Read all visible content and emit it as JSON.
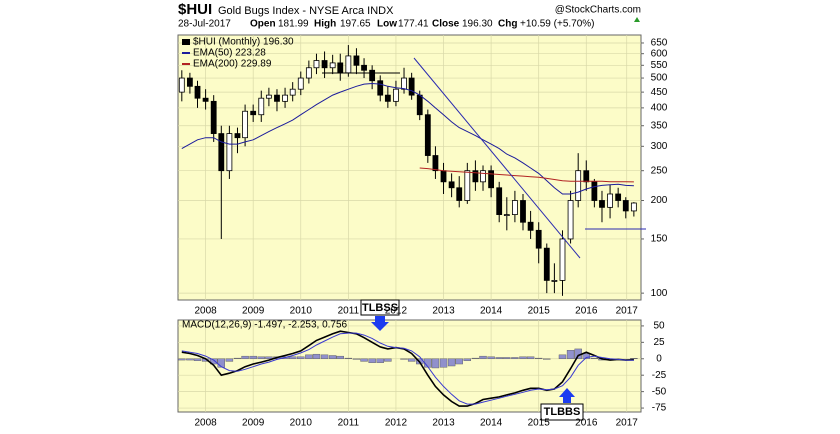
{
  "chart_data": [
    {
      "type": "ohlc",
      "title": "$HUI",
      "subtitle": "Gold Bugs Index - NYSE Arca INDX",
      "source": "@StockCharts.com",
      "info": [
        "28-Jul-2017",
        "Open",
        "181.99",
        "High",
        "197.65",
        "Low",
        "177.41",
        "Close",
        "196.30",
        "Chg",
        "+10.59 (+5.70%)"
      ],
      "log_scale": true,
      "grid": true,
      "xlim": [
        2007.92,
        2017.65
      ],
      "ylim": [
        95,
        690
      ],
      "xticks": [
        {
          "value": 2008.5,
          "label": "2008"
        },
        {
          "value": 2009.5,
          "label": "2009"
        },
        {
          "value": 2010.5,
          "label": "2010"
        },
        {
          "value": 2011.5,
          "label": "2011"
        },
        {
          "value": 2012.5,
          "label": "2012"
        },
        {
          "value": 2013.5,
          "label": "2013"
        },
        {
          "value": 2014.5,
          "label": "2014"
        },
        {
          "value": 2015.5,
          "label": "2015"
        },
        {
          "value": 2016.5,
          "label": "2016"
        },
        {
          "value": 2017.35,
          "label": "2017"
        }
      ],
      "yticks": [
        100,
        150,
        200,
        250,
        300,
        350,
        400,
        450,
        500,
        550,
        600,
        650
      ],
      "x": [
        2008,
        2008.17,
        2008.33,
        2008.5,
        2008.67,
        2008.83,
        2009,
        2009.17,
        2009.33,
        2009.5,
        2009.67,
        2009.83,
        2010,
        2010.17,
        2010.33,
        2010.5,
        2010.67,
        2010.83,
        2011,
        2011.17,
        2011.33,
        2011.5,
        2011.67,
        2011.83,
        2012,
        2012.17,
        2012.33,
        2012.5,
        2012.67,
        2012.83,
        2013,
        2013.17,
        2013.33,
        2013.5,
        2013.67,
        2013.83,
        2014,
        2014.17,
        2014.33,
        2014.5,
        2014.67,
        2014.83,
        2015,
        2015.17,
        2015.33,
        2015.5,
        2015.67,
        2015.83,
        2016,
        2016.17,
        2016.33,
        2016.5,
        2016.67,
        2016.83,
        2017,
        2017.17,
        2017.33,
        2017.5
      ],
      "series": [
        {
          "name": "$HUI (Monthly) 196.30",
          "color": "#000000",
          "open": [
            450,
            500,
            470,
            430,
            420,
            330,
            250,
            330,
            320,
            390,
            380,
            430,
            440,
            420,
            440,
            460,
            500,
            540,
            570,
            540,
            560,
            520,
            590,
            550,
            530,
            490,
            440,
            420,
            460,
            500,
            440,
            380,
            280,
            250,
            230,
            220,
            200,
            250,
            230,
            250,
            220,
            180,
            180,
            200,
            170,
            160,
            140,
            110,
            110,
            150,
            200,
            250,
            230,
            200,
            190,
            210,
            200,
            185
          ],
          "high": [
            530,
            520,
            490,
            460,
            440,
            350,
            350,
            345,
            410,
            410,
            455,
            465,
            460,
            465,
            485,
            525,
            570,
            600,
            610,
            595,
            600,
            640,
            625,
            580,
            550,
            510,
            470,
            490,
            540,
            520,
            455,
            395,
            300,
            265,
            245,
            240,
            265,
            270,
            260,
            260,
            230,
            205,
            215,
            210,
            185,
            170,
            145,
            125,
            160,
            215,
            285,
            270,
            235,
            215,
            225,
            220,
            205,
            197.65
          ],
          "low": [
            420,
            445,
            400,
            395,
            310,
            150,
            235,
            285,
            300,
            360,
            360,
            405,
            390,
            400,
            420,
            440,
            480,
            515,
            500,
            515,
            490,
            505,
            515,
            500,
            460,
            420,
            400,
            405,
            445,
            425,
            365,
            265,
            235,
            210,
            205,
            190,
            195,
            215,
            215,
            205,
            170,
            160,
            170,
            160,
            150,
            125,
            100,
            100,
            98,
            145,
            190,
            215,
            190,
            170,
            175,
            190,
            175,
            177.41
          ],
          "close": [
            500,
            470,
            430,
            420,
            330,
            250,
            330,
            320,
            390,
            380,
            430,
            440,
            420,
            440,
            460,
            500,
            540,
            570,
            540,
            560,
            520,
            590,
            550,
            530,
            490,
            440,
            420,
            460,
            500,
            440,
            380,
            280,
            250,
            230,
            220,
            200,
            250,
            230,
            250,
            220,
            180,
            180,
            200,
            170,
            160,
            140,
            110,
            110,
            150,
            200,
            250,
            230,
            200,
            190,
            210,
            200,
            185,
            196.3
          ]
        },
        {
          "name": "EMA(50) 223.28",
          "color": "#1c1c9c",
          "values": [
            295,
            305,
            315,
            320,
            320,
            310,
            305,
            305,
            310,
            315,
            325,
            335,
            345,
            355,
            365,
            380,
            395,
            410,
            425,
            440,
            450,
            460,
            470,
            478,
            480,
            478,
            470,
            465,
            462,
            455,
            440,
            420,
            400,
            380,
            360,
            345,
            335,
            325,
            315,
            305,
            295,
            283,
            275,
            265,
            255,
            245,
            232,
            220,
            210,
            210,
            213,
            218,
            222,
            224,
            225,
            226,
            224,
            223.28
          ]
        },
        {
          "name": "EMA(200) 229.89",
          "color": "#b22222",
          "values": [
            null,
            null,
            null,
            null,
            null,
            null,
            null,
            null,
            null,
            null,
            null,
            null,
            null,
            null,
            null,
            null,
            null,
            null,
            null,
            null,
            null,
            null,
            null,
            null,
            null,
            null,
            null,
            null,
            null,
            null,
            255,
            254,
            252,
            250,
            249,
            248,
            247,
            246,
            245,
            244,
            243,
            242,
            241,
            240,
            239,
            238,
            236,
            234,
            232,
            231,
            231,
            231,
            231,
            231,
            230,
            230,
            230,
            229.89
          ]
        }
      ]
    },
    {
      "type": "macd",
      "title": "MACD(12,26,9) -1.497, -2.253, 0.756",
      "grid": true,
      "annotations": [
        "TLBSS",
        "TLBBS"
      ],
      "xlim": [
        2007.92,
        2017.65
      ],
      "ylim": [
        -81,
        59
      ],
      "xticks": [
        {
          "value": 2008.5,
          "label": "2008"
        },
        {
          "value": 2009.5,
          "label": "2009"
        },
        {
          "value": 2010.5,
          "label": "2010"
        },
        {
          "value": 2011.5,
          "label": "2011"
        },
        {
          "value": 2012.5,
          "label": "2012"
        },
        {
          "value": 2013.5,
          "label": "2013"
        },
        {
          "value": 2014.5,
          "label": "2014"
        },
        {
          "value": 2015.5,
          "label": "2015"
        },
        {
          "value": 2016.5,
          "label": "2016"
        },
        {
          "value": 2017.35,
          "label": "2017"
        }
      ],
      "yticks": [
        50,
        25,
        0,
        -25,
        -50,
        -75
      ],
      "x": [
        2008,
        2008.17,
        2008.33,
        2008.5,
        2008.67,
        2008.83,
        2009,
        2009.17,
        2009.33,
        2009.5,
        2009.67,
        2009.83,
        2010,
        2010.17,
        2010.33,
        2010.5,
        2010.67,
        2010.83,
        2011,
        2011.17,
        2011.33,
        2011.5,
        2011.67,
        2011.83,
        2012,
        2012.17,
        2012.33,
        2012.5,
        2012.67,
        2012.83,
        2013,
        2013.17,
        2013.33,
        2013.5,
        2013.67,
        2013.83,
        2014,
        2014.17,
        2014.33,
        2014.5,
        2014.67,
        2014.83,
        2015,
        2015.17,
        2015.33,
        2015.5,
        2015.67,
        2015.83,
        2016,
        2016.17,
        2016.33,
        2016.5,
        2016.67,
        2016.83,
        2017,
        2017.17,
        2017.33,
        2017.5
      ],
      "series": [
        {
          "kind": "line",
          "color": "#000000",
          "values": [
            10,
            8,
            5,
            0,
            -10,
            -25,
            -22,
            -18,
            -12,
            -8,
            -5,
            -2,
            2,
            5,
            8,
            12,
            20,
            28,
            33,
            38,
            42,
            40,
            38,
            32,
            25,
            18,
            15,
            17,
            15,
            8,
            -5,
            -25,
            -42,
            -55,
            -65,
            -72,
            -72,
            -68,
            -62,
            -60,
            -58,
            -55,
            -52,
            -48,
            -45,
            -45,
            -48,
            -46,
            -35,
            -15,
            5,
            10,
            5,
            0,
            -2,
            -1,
            -2,
            -1.497
          ]
        },
        {
          "kind": "line",
          "color": "#3a3ad0",
          "values": [
            12,
            10,
            8,
            4,
            -2,
            -12,
            -18,
            -19,
            -16,
            -12,
            -8,
            -5,
            -1,
            2,
            5,
            9,
            14,
            21,
            27,
            33,
            38,
            39,
            39,
            36,
            31,
            24,
            19,
            17,
            16,
            12,
            3,
            -12,
            -28,
            -42,
            -54,
            -64,
            -69,
            -69,
            -66,
            -63,
            -60,
            -57,
            -54,
            -51,
            -48,
            -46,
            -47,
            -46,
            -41,
            -28,
            -10,
            2,
            4,
            2,
            0,
            -1,
            -2,
            -2.253
          ]
        },
        {
          "kind": "histogram",
          "color": "#9090cc",
          "values": [
            -2,
            -2,
            -3,
            -4,
            -8,
            -13,
            -4,
            1,
            4,
            4,
            3,
            3,
            3,
            3,
            3,
            3,
            6,
            7,
            6,
            5,
            4,
            1,
            -1,
            -4,
            -6,
            -6,
            -4,
            0,
            -1,
            -4,
            -8,
            -13,
            -14,
            -13,
            -11,
            -8,
            -3,
            1,
            4,
            3,
            2,
            2,
            2,
            3,
            3,
            1,
            -1,
            0,
            6,
            13,
            15,
            8,
            1,
            -2,
            -2,
            0,
            0,
            0.756
          ]
        }
      ]
    }
  ]
}
